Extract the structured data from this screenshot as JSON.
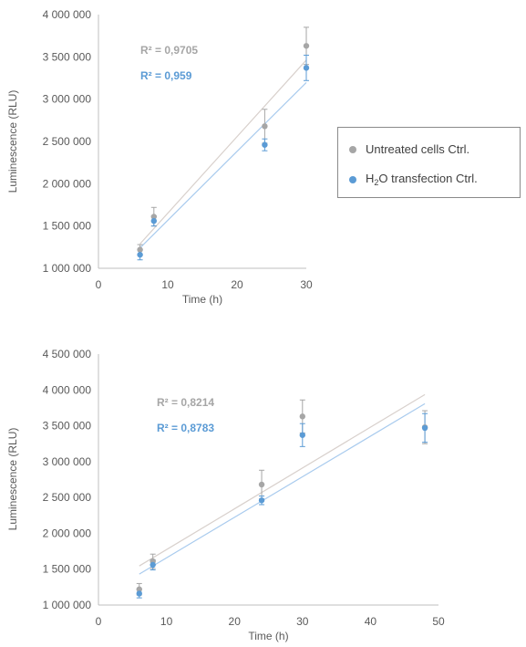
{
  "legend": {
    "series1_label": "Untreated cells Ctrl.",
    "series2_prefix": "H",
    "series2_sub": "2",
    "series2_suffix": "O transfection Ctrl."
  },
  "colors": {
    "series1": "#a6a6a6",
    "series2": "#5b9bd5",
    "fit1": "#d8d0cc",
    "fit2": "#a9cbee",
    "grid": "#d9d9d9"
  },
  "chart_data": [
    {
      "type": "scatter",
      "xlabel": "Time (h)",
      "ylabel": "Luminescence (RLU)",
      "xlim": [
        0,
        30
      ],
      "ylim": [
        1000000,
        4000000
      ],
      "x_ticks": [
        "0",
        "10",
        "20",
        "30"
      ],
      "y_ticks": [
        "1 000 000",
        "1 500 000",
        "2 000 000",
        "2 500 000",
        "3 000 000",
        "3 500 000",
        "4 000 000"
      ],
      "grid": false,
      "trendlines": true,
      "series": [
        {
          "name": "Untreated cells Ctrl.",
          "x": [
            6,
            8,
            24,
            30
          ],
          "y": [
            1220000,
            1610000,
            2680000,
            3630000
          ],
          "err": [
            60000,
            110000,
            200000,
            220000
          ],
          "r2": "R² = 0,9705"
        },
        {
          "name": "H2O transfection Ctrl.",
          "x": [
            6,
            8,
            24,
            30
          ],
          "y": [
            1160000,
            1560000,
            2460000,
            3370000
          ],
          "err": [
            60000,
            60000,
            70000,
            150000
          ],
          "r2": "R² = 0,959"
        }
      ]
    },
    {
      "type": "scatter",
      "xlabel": "Time (h)",
      "ylabel": "Luminescence (RLU)",
      "xlim": [
        0,
        50
      ],
      "ylim": [
        1000000,
        4500000
      ],
      "x_ticks": [
        "0",
        "10",
        "20",
        "30",
        "40",
        "50"
      ],
      "y_ticks": [
        "1 000 000",
        "1 500 000",
        "2 000 000",
        "2 500 000",
        "3 000 000",
        "3 500 000",
        "4 000 000",
        "4 500 000"
      ],
      "grid": false,
      "trendlines": true,
      "series": [
        {
          "name": "Untreated cells Ctrl.",
          "x": [
            6,
            8,
            24,
            30,
            48
          ],
          "y": [
            1220000,
            1610000,
            2680000,
            3630000,
            3480000
          ],
          "err": [
            80000,
            100000,
            200000,
            230000,
            230000
          ],
          "r2": "R² = 0,8214"
        },
        {
          "name": "H2O transfection Ctrl.",
          "x": [
            6,
            8,
            24,
            30,
            48
          ],
          "y": [
            1160000,
            1560000,
            2460000,
            3370000,
            3470000
          ],
          "err": [
            60000,
            70000,
            60000,
            160000,
            200000
          ],
          "r2": "R² = 0,8783"
        }
      ]
    }
  ]
}
